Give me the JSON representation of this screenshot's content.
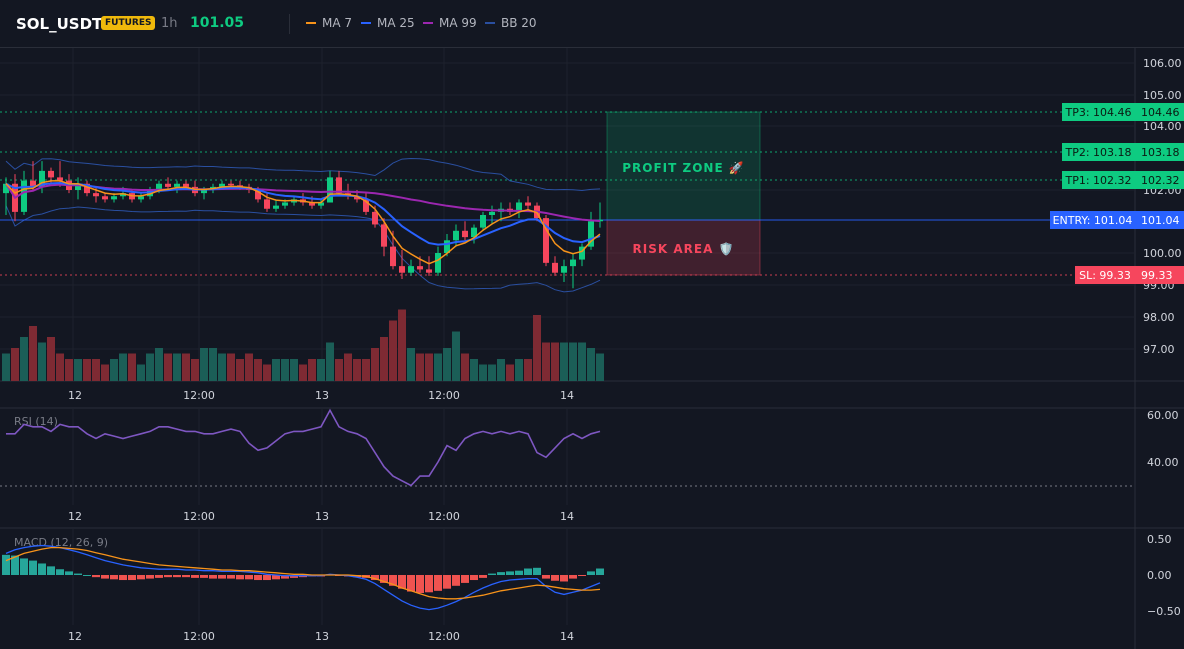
{
  "header": {
    "symbol": "SOL_USDT",
    "badge": "FUTURES",
    "timeframe": "1h",
    "price": "101.05",
    "legend": [
      {
        "label": "MA 7",
        "color": "#f7931a"
      },
      {
        "label": "MA 25",
        "color": "#2962ff"
      },
      {
        "label": "MA 99",
        "color": "#9c27b0"
      },
      {
        "label": "BB 20",
        "color": "#2a4fa0"
      }
    ]
  },
  "colors": {
    "up": "#26a69a",
    "down": "#ef5350",
    "bull": "#0ecb81",
    "bear": "#f6465d",
    "entry": "#2962ff"
  },
  "price_axis": [
    "106.00",
    "105.00",
    "104.00",
    "102.00",
    "100.00",
    "99.00",
    "98.00",
    "97.00"
  ],
  "price_axis_values": [
    106,
    105,
    104,
    102,
    100,
    99,
    98,
    97
  ],
  "time_axis": [
    "12",
    "12:00",
    "13",
    "12:00",
    "14"
  ],
  "levels": [
    {
      "label": "TP3: 104.46",
      "value": "104.46",
      "type": "tp"
    },
    {
      "label": "TP2: 103.18",
      "value": "103.18",
      "type": "tp"
    },
    {
      "label": "TP1: 102.32",
      "value": "102.32",
      "type": "tp"
    },
    {
      "label": "ENTRY: 101.04",
      "value": "101.04",
      "type": "entry"
    },
    {
      "label": "SL: 99.33",
      "value": "99.33",
      "type": "sl"
    }
  ],
  "zones": {
    "profit": "PROFIT ZONE 🚀",
    "risk": "RISK AREA 🛡️"
  },
  "rsi": {
    "label": "RSI (14)",
    "axis": [
      "60.00",
      "40.00"
    ]
  },
  "macd": {
    "label": "MACD (12, 26, 9)",
    "axis": [
      "0.50",
      "0.00",
      "−0.50"
    ]
  },
  "chart_data": {
    "type": "candlestick",
    "candles": [
      [
        101.9,
        102.4,
        101.2,
        102.2
      ],
      [
        102.2,
        102.5,
        101.0,
        101.3
      ],
      [
        101.3,
        102.6,
        101.2,
        102.3
      ],
      [
        102.3,
        102.9,
        102.0,
        102.1
      ],
      [
        102.1,
        102.9,
        101.9,
        102.6
      ],
      [
        102.6,
        102.7,
        102.2,
        102.4
      ],
      [
        102.4,
        102.9,
        102.1,
        102.3
      ],
      [
        102.3,
        102.5,
        101.9,
        102.0
      ],
      [
        102.0,
        102.4,
        101.7,
        102.2
      ],
      [
        102.2,
        102.3,
        101.8,
        101.9
      ],
      [
        101.9,
        102.1,
        101.6,
        101.8
      ],
      [
        101.8,
        101.9,
        101.6,
        101.7
      ],
      [
        101.7,
        101.9,
        101.6,
        101.8
      ],
      [
        101.8,
        102.1,
        101.7,
        101.9
      ],
      [
        101.9,
        102.0,
        101.6,
        101.7
      ],
      [
        101.7,
        101.9,
        101.6,
        101.8
      ],
      [
        101.8,
        102.1,
        101.7,
        102.0
      ],
      [
        102.0,
        102.3,
        101.9,
        102.2
      ],
      [
        102.2,
        102.4,
        102.0,
        102.1
      ],
      [
        102.1,
        102.3,
        101.9,
        102.2
      ],
      [
        102.2,
        102.3,
        102.0,
        102.1
      ],
      [
        102.1,
        102.3,
        101.8,
        101.9
      ],
      [
        101.9,
        102.1,
        101.7,
        102.0
      ],
      [
        102.0,
        102.2,
        101.9,
        102.1
      ],
      [
        102.1,
        102.3,
        102.0,
        102.2
      ],
      [
        102.2,
        102.3,
        102.1,
        102.15
      ],
      [
        102.15,
        102.3,
        102.0,
        102.1
      ],
      [
        102.1,
        102.2,
        101.9,
        102.0
      ],
      [
        102.0,
        102.1,
        101.6,
        101.7
      ],
      [
        101.7,
        101.9,
        101.3,
        101.4
      ],
      [
        101.4,
        101.7,
        101.3,
        101.5
      ],
      [
        101.5,
        101.7,
        101.4,
        101.6
      ],
      [
        101.6,
        101.8,
        101.5,
        101.7
      ],
      [
        101.7,
        101.9,
        101.5,
        101.6
      ],
      [
        101.6,
        101.8,
        101.4,
        101.5
      ],
      [
        101.5,
        101.7,
        101.4,
        101.6
      ],
      [
        101.6,
        102.6,
        101.6,
        102.4
      ],
      [
        102.4,
        102.6,
        101.8,
        101.9
      ],
      [
        101.9,
        102.2,
        101.7,
        101.8
      ],
      [
        101.8,
        102.0,
        101.6,
        101.7
      ],
      [
        101.7,
        101.9,
        101.2,
        101.3
      ],
      [
        101.3,
        101.5,
        100.8,
        100.9
      ],
      [
        100.9,
        101.1,
        99.9,
        100.2
      ],
      [
        100.2,
        100.7,
        99.5,
        99.6
      ],
      [
        99.6,
        100.1,
        99.2,
        99.4
      ],
      [
        99.4,
        99.8,
        99.3,
        99.6
      ],
      [
        99.6,
        99.9,
        99.4,
        99.5
      ],
      [
        99.5,
        99.9,
        99.3,
        99.4
      ],
      [
        99.4,
        100.2,
        99.3,
        100.0
      ],
      [
        100.0,
        100.6,
        99.9,
        100.4
      ],
      [
        100.4,
        100.9,
        100.2,
        100.7
      ],
      [
        100.7,
        101.0,
        100.4,
        100.5
      ],
      [
        100.5,
        100.9,
        100.3,
        100.8
      ],
      [
        100.8,
        101.3,
        100.7,
        101.2
      ],
      [
        101.2,
        101.5,
        100.9,
        101.3
      ],
      [
        101.3,
        101.6,
        101.0,
        101.4
      ],
      [
        101.4,
        101.6,
        101.2,
        101.3
      ],
      [
        101.3,
        101.7,
        101.1,
        101.6
      ],
      [
        101.6,
        101.8,
        101.3,
        101.5
      ],
      [
        101.5,
        101.6,
        101.0,
        101.1
      ],
      [
        101.1,
        101.2,
        99.6,
        99.7
      ],
      [
        99.7,
        99.9,
        99.3,
        99.4
      ],
      [
        99.4,
        99.8,
        99.1,
        99.6
      ],
      [
        99.6,
        100.0,
        98.9,
        99.8
      ],
      [
        99.8,
        100.3,
        99.6,
        100.2
      ],
      [
        100.2,
        101.3,
        100.1,
        101.0
      ],
      [
        101.0,
        101.6,
        100.8,
        101.05
      ]
    ],
    "volumes": [
      5,
      6,
      8,
      10,
      7,
      8,
      5,
      4,
      4,
      4,
      4,
      3,
      4,
      5,
      5,
      3,
      5,
      6,
      5,
      5,
      5,
      4,
      6,
      6,
      5,
      5,
      4,
      5,
      4,
      3,
      4,
      4,
      4,
      3,
      4,
      4,
      7,
      4,
      5,
      4,
      4,
      6,
      8,
      11,
      13,
      6,
      5,
      5,
      5,
      6,
      9,
      5,
      4,
      3,
      3,
      4,
      3,
      4,
      4,
      12,
      7,
      7,
      7,
      7,
      7,
      6,
      5
    ],
    "rsi": [
      52,
      52,
      56,
      55,
      55,
      53,
      56,
      55,
      55,
      52,
      50,
      52,
      51,
      50,
      51,
      52,
      53,
      55,
      55,
      54,
      53,
      53,
      52,
      52,
      53,
      54,
      53,
      48,
      45,
      46,
      49,
      52,
      53,
      53,
      54,
      55,
      62,
      55,
      53,
      52,
      50,
      44,
      38,
      34,
      32,
      30,
      34,
      34,
      40,
      47,
      45,
      50,
      52,
      53,
      52,
      53,
      52,
      53,
      52,
      44,
      42,
      46,
      50,
      52,
      50,
      52,
      53
    ],
    "macd_hist": [
      0.28,
      0.27,
      0.23,
      0.2,
      0.16,
      0.12,
      0.08,
      0.05,
      0.02,
      0.0,
      -0.03,
      -0.05,
      -0.06,
      -0.07,
      -0.07,
      -0.06,
      -0.05,
      -0.04,
      -0.03,
      -0.03,
      -0.03,
      -0.04,
      -0.04,
      -0.05,
      -0.05,
      -0.05,
      -0.06,
      -0.06,
      -0.07,
      -0.07,
      -0.06,
      -0.05,
      -0.04,
      -0.03,
      -0.02,
      -0.02,
      0.01,
      -0.01,
      -0.02,
      -0.03,
      -0.04,
      -0.07,
      -0.11,
      -0.15,
      -0.19,
      -0.23,
      -0.25,
      -0.24,
      -0.22,
      -0.19,
      -0.15,
      -0.11,
      -0.07,
      -0.04,
      0.02,
      0.04,
      0.05,
      0.06,
      0.09,
      0.1,
      -0.05,
      -0.08,
      -0.09,
      -0.05,
      -0.01,
      0.05,
      0.09
    ],
    "macd_line": [
      0.3,
      0.35,
      0.38,
      0.4,
      0.41,
      0.4,
      0.38,
      0.35,
      0.32,
      0.28,
      0.24,
      0.2,
      0.17,
      0.14,
      0.12,
      0.1,
      0.09,
      0.08,
      0.08,
      0.08,
      0.07,
      0.07,
      0.06,
      0.06,
      0.05,
      0.05,
      0.05,
      0.04,
      0.03,
      0.01,
      0.0,
      -0.01,
      -0.01,
      -0.01,
      -0.01,
      -0.01,
      0.01,
      0.0,
      -0.01,
      -0.03,
      -0.06,
      -0.12,
      -0.2,
      -0.28,
      -0.36,
      -0.42,
      -0.46,
      -0.48,
      -0.46,
      -0.42,
      -0.37,
      -0.31,
      -0.24,
      -0.18,
      -0.13,
      -0.09,
      -0.07,
      -0.06,
      -0.05,
      -0.05,
      -0.16,
      -0.24,
      -0.27,
      -0.24,
      -0.21,
      -0.16,
      -0.11
    ],
    "macd_signal": [
      0.2,
      0.25,
      0.3,
      0.33,
      0.36,
      0.38,
      0.38,
      0.37,
      0.36,
      0.34,
      0.31,
      0.28,
      0.25,
      0.22,
      0.2,
      0.18,
      0.16,
      0.14,
      0.13,
      0.12,
      0.11,
      0.1,
      0.09,
      0.08,
      0.07,
      0.07,
      0.06,
      0.06,
      0.05,
      0.04,
      0.03,
      0.02,
      0.01,
      0.01,
      0.0,
      0.0,
      0.0,
      0.0,
      0.0,
      -0.01,
      -0.02,
      -0.05,
      -0.09,
      -0.13,
      -0.18,
      -0.22,
      -0.26,
      -0.3,
      -0.32,
      -0.33,
      -0.33,
      -0.32,
      -0.3,
      -0.28,
      -0.25,
      -0.22,
      -0.2,
      -0.18,
      -0.16,
      -0.14,
      -0.15,
      -0.17,
      -0.19,
      -0.2,
      -0.21,
      -0.21,
      -0.2
    ]
  }
}
